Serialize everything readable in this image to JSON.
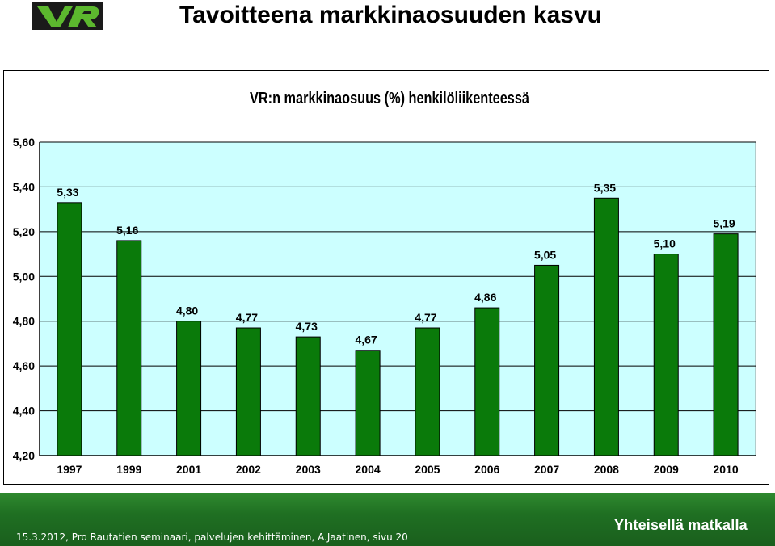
{
  "header": {
    "logo_text": "VR",
    "title": "Tavoitteena markkinaosuuden kasvu"
  },
  "chart_data": {
    "type": "bar",
    "title": "VR:n markkinaosuus (%) henkilöliikenteessä",
    "categories": [
      "1997",
      "1999",
      "2001",
      "2002",
      "2003",
      "2004",
      "2005",
      "2006",
      "2007",
      "2008",
      "2009",
      "2010"
    ],
    "values": [
      5.33,
      5.16,
      4.8,
      4.77,
      4.73,
      4.67,
      4.77,
      4.86,
      5.05,
      5.35,
      5.1,
      5.19
    ],
    "value_labels": [
      "5,33",
      "5,16",
      "4,80",
      "4,77",
      "4,73",
      "4,67",
      "4,77",
      "4,86",
      "5,05",
      "5,35",
      "5,10",
      "5,19"
    ],
    "ylim": [
      4.2,
      5.6
    ],
    "yticks": [
      5.6,
      5.4,
      5.2,
      5.0,
      4.8,
      4.6,
      4.4,
      4.2
    ],
    "ytick_labels": [
      "5,60",
      "5,40",
      "5,20",
      "5,00",
      "4,80",
      "4,60",
      "4,40",
      "4,20"
    ],
    "grid": true,
    "legend": "none",
    "bar_color": "#0a7a0a",
    "plot_background": "#ccffff",
    "xlabel": "",
    "ylabel": ""
  },
  "footer": {
    "text": "15.3.2012, Pro Rautatien seminaari, palvelujen kehittäminen, A.Jaatinen, sivu 20",
    "slogan": "Yhteisellä matkalla"
  }
}
